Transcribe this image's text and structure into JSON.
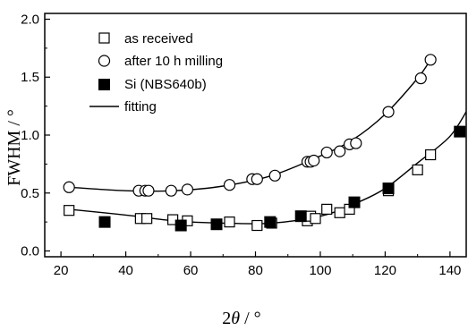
{
  "chart_data": {
    "type": "scatter",
    "xlabel_parts": [
      "2",
      "θ",
      " / °"
    ],
    "ylabel": "FWHM  / °",
    "xlim": [
      15,
      145
    ],
    "ylim": [
      -0.05,
      2.05
    ],
    "x_ticks": [
      20,
      40,
      60,
      80,
      100,
      120,
      140
    ],
    "y_ticks": [
      0.0,
      0.5,
      1.0,
      1.5,
      2.0
    ],
    "y_tick_labels": [
      "0.0",
      "0.5",
      "1.0",
      "1.5",
      "2.0"
    ],
    "grid": false,
    "legend_position": "top-left",
    "series": [
      {
        "name": "as received",
        "marker": "open-square",
        "points": [
          [
            22.5,
            0.35
          ],
          [
            44.5,
            0.28
          ],
          [
            46.5,
            0.28
          ],
          [
            54.5,
            0.27
          ],
          [
            59,
            0.26
          ],
          [
            72,
            0.25
          ],
          [
            80.5,
            0.22
          ],
          [
            85,
            0.24
          ],
          [
            96,
            0.26
          ],
          [
            97,
            0.3
          ],
          [
            98.5,
            0.28
          ],
          [
            102,
            0.36
          ],
          [
            106,
            0.33
          ],
          [
            109,
            0.36
          ],
          [
            121,
            0.52
          ],
          [
            130,
            0.7
          ],
          [
            134,
            0.83
          ]
        ]
      },
      {
        "name": "after 10 h milling",
        "marker": "open-circle",
        "points": [
          [
            22.5,
            0.55
          ],
          [
            44,
            0.52
          ],
          [
            46,
            0.52
          ],
          [
            47,
            0.52
          ],
          [
            54,
            0.52
          ],
          [
            59,
            0.53
          ],
          [
            72,
            0.57
          ],
          [
            79,
            0.62
          ],
          [
            80.5,
            0.62
          ],
          [
            86,
            0.65
          ],
          [
            96,
            0.77
          ],
          [
            97,
            0.77
          ],
          [
            98,
            0.78
          ],
          [
            102,
            0.85
          ],
          [
            106,
            0.86
          ],
          [
            109,
            0.92
          ],
          [
            111,
            0.93
          ],
          [
            121,
            1.2
          ],
          [
            131,
            1.49
          ],
          [
            134,
            1.65
          ]
        ]
      },
      {
        "name": "Si (NBS640b)",
        "marker": "filled-square",
        "points": [
          [
            33.5,
            0.25
          ],
          [
            57,
            0.22
          ],
          [
            68,
            0.23
          ],
          [
            84.5,
            0.25
          ],
          [
            94,
            0.3
          ],
          [
            110.5,
            0.42
          ],
          [
            121,
            0.54
          ],
          [
            143,
            1.03
          ]
        ]
      },
      {
        "name": "fitting",
        "marker": "line",
        "curves": [
          [
            [
              22.5,
              0.55
            ],
            [
              40,
              0.52
            ],
            [
              55,
              0.52
            ],
            [
              70,
              0.56
            ],
            [
              85,
              0.65
            ],
            [
              100,
              0.82
            ],
            [
              110,
              0.96
            ],
            [
              120,
              1.18
            ],
            [
              130,
              1.49
            ],
            [
              134,
              1.65
            ]
          ],
          [
            [
              22.5,
              0.36
            ],
            [
              40,
              0.31
            ],
            [
              55,
              0.26
            ],
            [
              70,
              0.24
            ],
            [
              85,
              0.24
            ],
            [
              100,
              0.3
            ],
            [
              110,
              0.4
            ],
            [
              120,
              0.54
            ],
            [
              130,
              0.76
            ],
            [
              140,
              0.99
            ],
            [
              146,
              1.25
            ]
          ]
        ]
      }
    ]
  }
}
